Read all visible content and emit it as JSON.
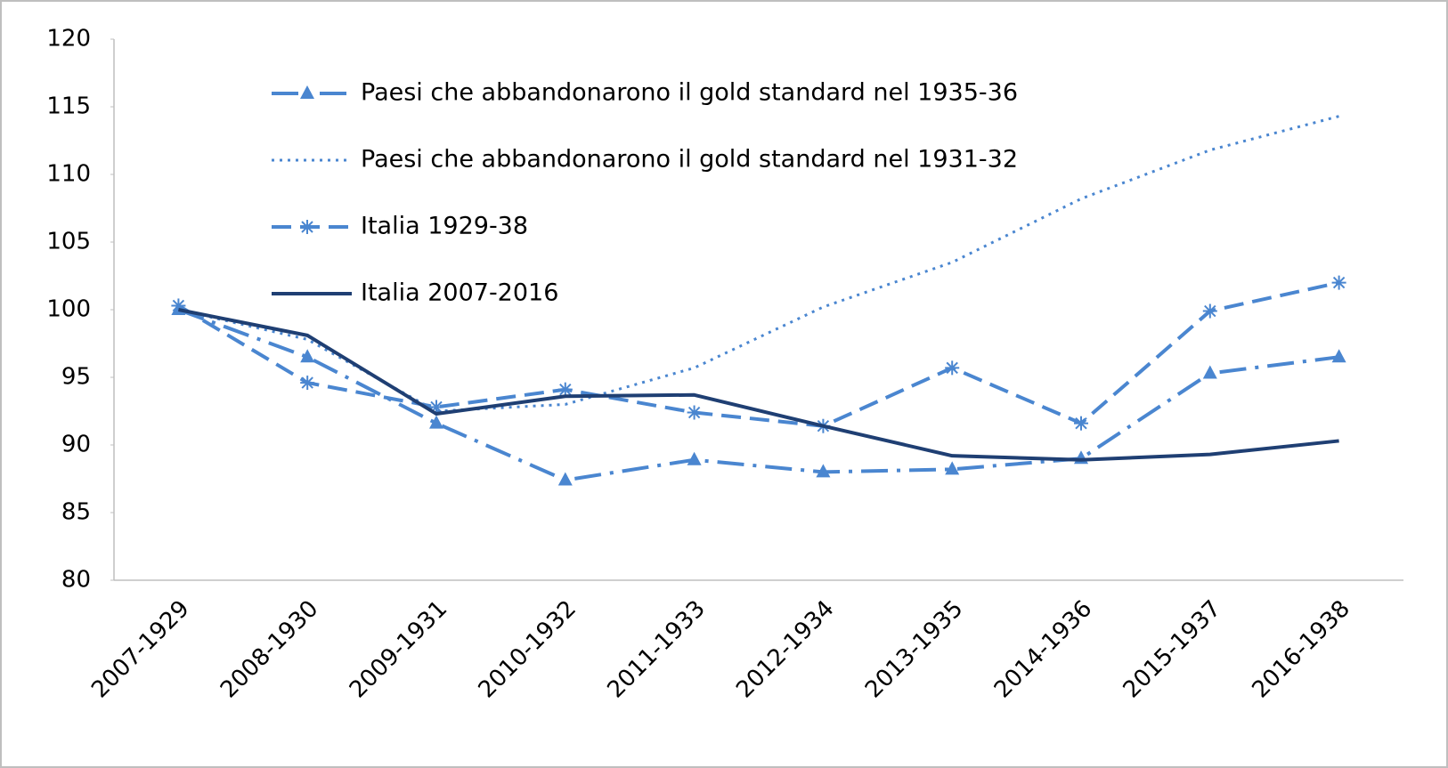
{
  "chart_data": {
    "type": "line",
    "categories": [
      "2007-1929",
      "2008-1930",
      "2009-1931",
      "2010-1932",
      "2011-1933",
      "2012-1934",
      "2013-1935",
      "2014-1936",
      "2015-1937",
      "2016-1938"
    ],
    "ylim": [
      80,
      120
    ],
    "yticks": [
      80,
      85,
      90,
      95,
      100,
      105,
      110,
      115,
      120
    ],
    "grid": false,
    "series": [
      {
        "name": "Paesi che abbandonarono il gold standard nel 1935-36",
        "color": "#4a86d0",
        "line_style": "dashdot",
        "marker": "triangle",
        "values": [
          100,
          96.5,
          91.6,
          87.4,
          88.9,
          88.0,
          88.2,
          89.0,
          95.3,
          96.5
        ]
      },
      {
        "name": "Paesi che abbandonarono il gold standard nel 1931-32",
        "color": "#4a86d0",
        "line_style": "dotted",
        "marker": "none",
        "values": [
          100,
          97.8,
          92.5,
          93.0,
          95.7,
          100.2,
          103.5,
          108.2,
          111.8,
          114.3
        ]
      },
      {
        "name": "Italia 1929-38",
        "color": "#4a86d0",
        "line_style": "dashed",
        "marker": "asterisk",
        "values": [
          100.3,
          94.6,
          92.8,
          94.1,
          92.4,
          91.4,
          95.7,
          91.6,
          99.9,
          102.0
        ]
      },
      {
        "name": "Italia 2007-2016",
        "color": "#1f3f73",
        "line_style": "solid",
        "marker": "none",
        "values": [
          100,
          98.1,
          92.3,
          93.6,
          93.7,
          91.4,
          89.2,
          88.9,
          89.3,
          90.3
        ]
      }
    ]
  }
}
